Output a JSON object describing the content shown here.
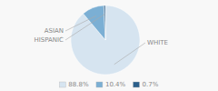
{
  "chart_data": {
    "type": "pie",
    "categories": [
      "WHITE",
      "ASIAN",
      "HISPANIC"
    ],
    "values": [
      88.8,
      10.4,
      0.7
    ],
    "value_labels": [
      "88.8%",
      "10.4%",
      "0.7%"
    ],
    "colors": [
      "#d6e4f0",
      "#7bafd4",
      "#2b5f8a"
    ],
    "legend": "bottom"
  }
}
